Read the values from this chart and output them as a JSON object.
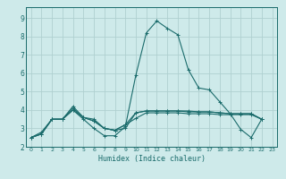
{
  "xlabel": "Humidex (Indice chaleur)",
  "bg_color": "#ceeaea",
  "grid_color": "#afd0d0",
  "line_color": "#1a6b6b",
  "xlim": [
    -0.5,
    23.5
  ],
  "ylim": [
    2.0,
    9.6
  ],
  "xtick_labels": [
    "0",
    "1",
    "2",
    "3",
    "4",
    "5",
    "6",
    "7",
    "8",
    "9",
    "10",
    "11",
    "12",
    "13",
    "14",
    "15",
    "16",
    "17",
    "18",
    "19",
    "20",
    "21",
    "22",
    "23"
  ],
  "ytick_labels": [
    "2",
    "3",
    "4",
    "5",
    "6",
    "7",
    "8",
    "9"
  ],
  "ytick_vals": [
    2,
    3,
    4,
    5,
    6,
    7,
    8,
    9
  ],
  "series": [
    [
      2.5,
      2.7,
      3.5,
      3.5,
      4.0,
      3.5,
      3.0,
      2.6,
      2.6,
      3.1,
      5.9,
      8.2,
      8.85,
      8.45,
      8.1,
      6.2,
      5.2,
      5.1,
      4.45,
      3.8,
      2.95,
      2.5,
      3.5
    ],
    [
      2.5,
      2.7,
      3.5,
      3.5,
      4.0,
      3.6,
      3.4,
      3.0,
      2.9,
      3.0,
      3.85,
      3.95,
      3.95,
      3.95,
      3.95,
      3.95,
      3.9,
      3.9,
      3.85,
      3.8,
      3.8,
      3.8,
      3.5
    ],
    [
      2.5,
      2.7,
      3.5,
      3.5,
      4.2,
      3.6,
      3.4,
      3.0,
      2.9,
      3.2,
      3.85,
      3.95,
      3.95,
      3.95,
      3.95,
      3.9,
      3.9,
      3.9,
      3.85,
      3.8,
      3.8,
      3.8,
      3.5
    ],
    [
      2.5,
      2.8,
      3.5,
      3.5,
      4.1,
      3.6,
      3.5,
      3.0,
      2.9,
      3.2,
      3.55,
      3.85,
      3.85,
      3.85,
      3.85,
      3.8,
      3.8,
      3.8,
      3.75,
      3.75,
      3.75,
      3.75,
      3.5
    ]
  ]
}
